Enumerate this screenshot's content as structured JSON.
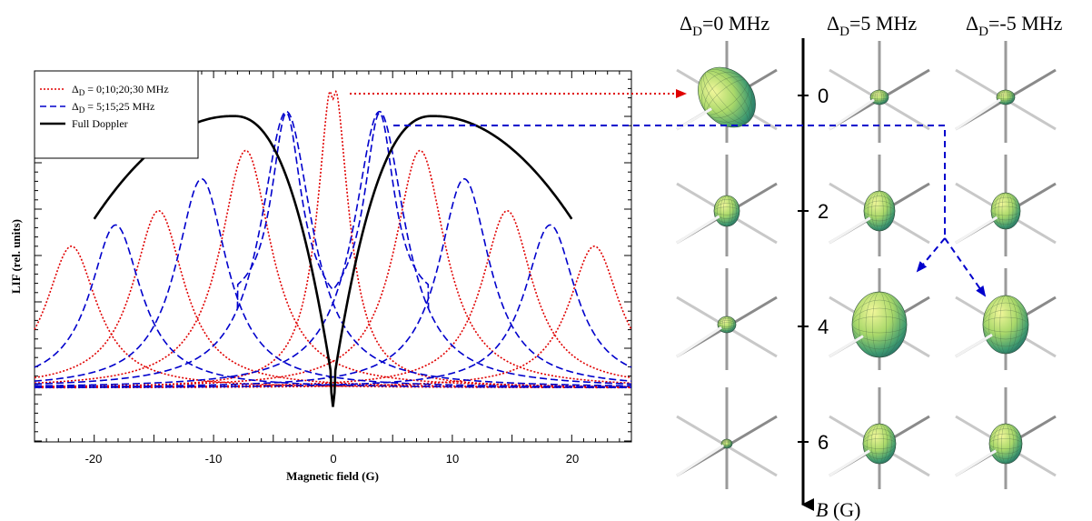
{
  "chart_data": {
    "type": "line",
    "xlabel": "Magnetic field (G)",
    "ylabel": "LIF (rel. units)",
    "xlim": [
      -25,
      25
    ],
    "xticks": [
      "-20",
      "-10",
      "0",
      "10",
      "20"
    ],
    "grid": false,
    "legend_position": "top-left",
    "series": [
      {
        "name": "Δ_D = 0;10;20;30 MHz",
        "style": "dotted",
        "color": "#e00000",
        "detunings_mhz": [
          0,
          10,
          20,
          30
        ],
        "peak_positions_G": [
          0,
          7.3,
          14.6,
          21.9
        ],
        "peak_heights": [
          0.875,
          0.67,
          0.5,
          0.4
        ]
      },
      {
        "name": "Δ_D = 5;15;25 MHz",
        "style": "dashed",
        "color": "#0000cc",
        "detunings_mhz": [
          5,
          15,
          25
        ],
        "peak_positions_G": [
          3.9,
          11.0,
          18.2
        ],
        "peak_heights": [
          0.78,
          0.59,
          0.46
        ]
      },
      {
        "name": "Full Doppler",
        "style": "solid",
        "color": "#000000",
        "x_range": [
          -20,
          20
        ],
        "peak_positions_G": [
          -8.5,
          8.5
        ],
        "peak_height": 0.77
      }
    ]
  },
  "labels": {
    "legend_red_prefix": "Δ",
    "legend_red_sub": "D",
    "legend_red_suffix": " = 0;10;20;30 MHz",
    "legend_blue_prefix": "Δ",
    "legend_blue_sub": "D",
    "legend_blue_suffix": " = 5;15;25 MHz",
    "legend_black": "Full Doppler",
    "xlabel": "Magnetic field (G)",
    "ylabel": "LIF (rel. units)",
    "xtick_m20": "-20",
    "xtick_m10": "-10",
    "xtick_0": "0",
    "xtick_10": "10",
    "xtick_20": "20"
  },
  "grid_panel": {
    "col1_prefix": "Δ",
    "col1_sub": "D",
    "col1_suffix": "=0 MHz",
    "col2_prefix": "Δ",
    "col2_sub": "D",
    "col2_suffix": "=5 MHz",
    "col3_prefix": "Δ",
    "col3_sub": "D",
    "col3_suffix": "=-5 MHz",
    "b_tick_0": "0",
    "b_tick_2": "2",
    "b_tick_4": "4",
    "b_tick_6": "6",
    "b_axis_var": "B",
    "b_axis_unit": " (G)",
    "b_values": [
      0,
      2,
      4,
      6
    ],
    "detunings": [
      0,
      5,
      -5
    ]
  },
  "colors": {
    "red_series": "#e00000",
    "blue_series": "#0000cc",
    "black_series": "#000000",
    "ellipsoid_light": "#f2f79a",
    "ellipsoid_mid": "#9fd46a",
    "ellipsoid_dark": "#1e6f6a"
  }
}
